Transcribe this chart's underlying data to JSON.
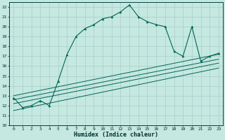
{
  "xlabel": "Humidex (Indice chaleur)",
  "bg_color": "#c5e8e0",
  "line_color": "#006655",
  "grid_color": "#a8cfc8",
  "x_main": [
    0,
    1,
    2,
    3,
    4,
    5,
    6,
    7,
    8,
    9,
    10,
    11,
    12,
    13,
    14,
    15,
    16,
    17,
    18,
    19,
    20,
    21,
    22,
    23
  ],
  "y_main": [
    12.8,
    11.8,
    12.0,
    12.5,
    12.0,
    14.5,
    17.2,
    19.0,
    19.8,
    20.2,
    20.8,
    21.0,
    21.5,
    22.2,
    21.0,
    20.5,
    20.2,
    20.0,
    17.5,
    17.0,
    20.0,
    16.5,
    17.0,
    17.3
  ],
  "straight_lines": [
    {
      "x": [
        0,
        23
      ],
      "y": [
        13.0,
        17.2
      ]
    },
    {
      "x": [
        0,
        23
      ],
      "y": [
        12.6,
        16.7
      ]
    },
    {
      "x": [
        0,
        23
      ],
      "y": [
        12.2,
        16.3
      ]
    },
    {
      "x": [
        0,
        23
      ],
      "y": [
        11.5,
        15.8
      ]
    }
  ],
  "ylim": [
    10,
    22.5
  ],
  "xlim": [
    -0.5,
    23.5
  ],
  "yticks": [
    10,
    11,
    12,
    13,
    14,
    15,
    16,
    17,
    18,
    19,
    20,
    21,
    22
  ],
  "xticks": [
    0,
    1,
    2,
    3,
    4,
    5,
    6,
    7,
    8,
    9,
    10,
    11,
    12,
    13,
    14,
    15,
    16,
    17,
    18,
    19,
    20,
    21,
    22,
    23
  ]
}
